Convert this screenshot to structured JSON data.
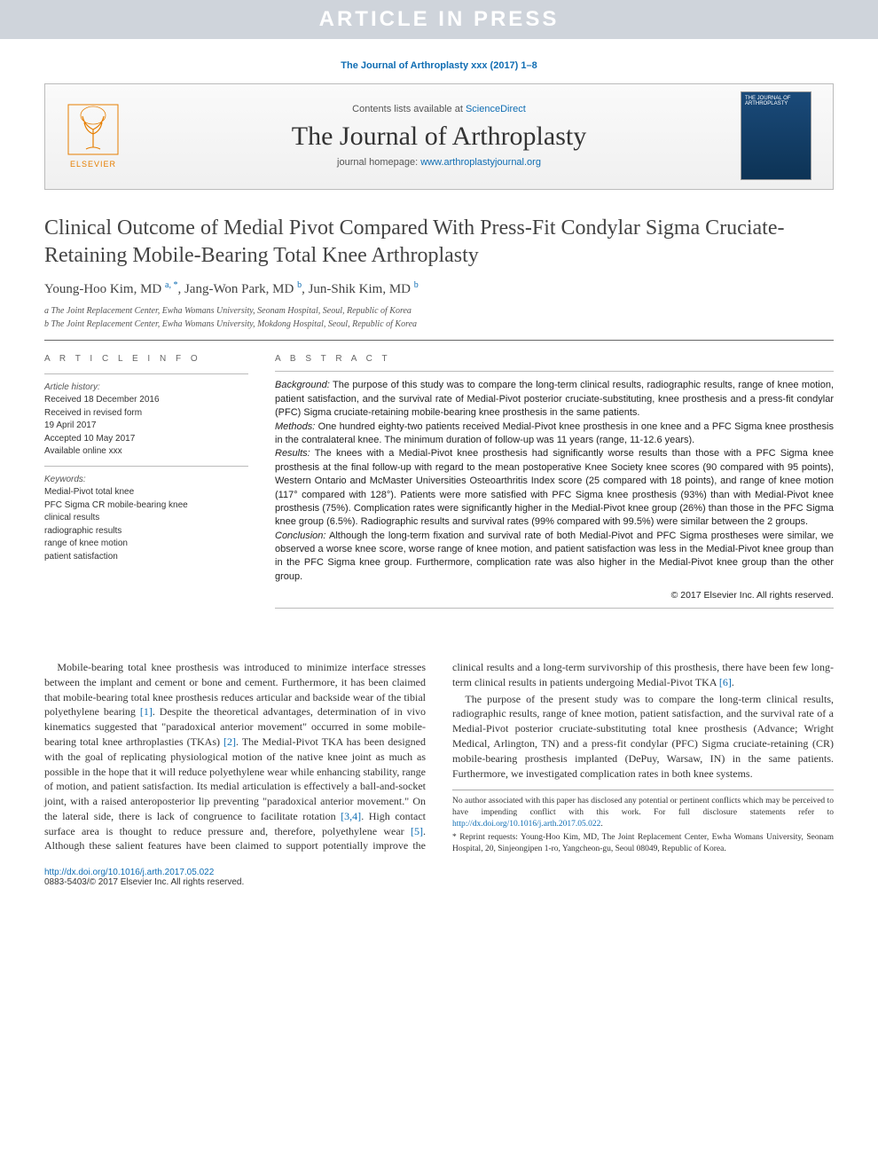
{
  "banner": "ARTICLE IN PRESS",
  "citation": "The Journal of Arthroplasty xxx (2017) 1–8",
  "masthead": {
    "contents_prefix": "Contents lists available at ",
    "contents_link": "ScienceDirect",
    "journal": "The Journal of Arthroplasty",
    "homepage_prefix": "journal homepage: ",
    "homepage": "www.arthroplastyjournal.org",
    "publisher": "ELSEVIER",
    "cover_label": "THE JOURNAL OF ARTHROPLASTY"
  },
  "title": "Clinical Outcome of Medial Pivot Compared With Press-Fit Condylar Sigma Cruciate-Retaining Mobile-Bearing Total Knee Arthroplasty",
  "authors_html": "Young-Hoo Kim, MD <span class='sup'>a, *</span>, Jang-Won Park, MD <span class='sup'>b</span>, Jun-Shik Kim, MD <span class='sup'>b</span>",
  "affiliations": {
    "a": "a The Joint Replacement Center, Ewha Womans University, Seonam Hospital, Seoul, Republic of Korea",
    "b": "b The Joint Replacement Center, Ewha Womans University, Mokdong Hospital, Seoul, Republic of Korea"
  },
  "article_info": {
    "head": "A R T I C L E  I N F O",
    "history_label": "Article history:",
    "history": [
      "Received 18 December 2016",
      "Received in revised form",
      "19 April 2017",
      "Accepted 10 May 2017",
      "Available online xxx"
    ],
    "keywords_label": "Keywords:",
    "keywords": [
      "Medial-Pivot total knee",
      "PFC Sigma CR mobile-bearing knee",
      "clinical results",
      "radiographic results",
      "range of knee motion",
      "patient satisfaction"
    ]
  },
  "abstract": {
    "head": "A B S T R A C T",
    "background_label": "Background:",
    "background": " The purpose of this study was to compare the long-term clinical results, radiographic results, range of knee motion, patient satisfaction, and the survival rate of Medial-Pivot posterior cruciate-substituting, knee prosthesis and a press-fit condylar (PFC) Sigma cruciate-retaining mobile-bearing knee prosthesis in the same patients.",
    "methods_label": "Methods:",
    "methods": " One hundred eighty-two patients received Medial-Pivot knee prosthesis in one knee and a PFC Sigma knee prosthesis in the contralateral knee. The minimum duration of follow-up was 11 years (range, 11-12.6 years).",
    "results_label": "Results:",
    "results": " The knees with a Medial-Pivot knee prosthesis had significantly worse results than those with a PFC Sigma knee prosthesis at the final follow-up with regard to the mean postoperative Knee Society knee scores (90 compared with 95 points), Western Ontario and McMaster Universities Osteoarthritis Index score (25 compared with 18 points), and range of knee motion (117° compared with 128°). Patients were more satisfied with PFC Sigma knee prosthesis (93%) than with Medial-Pivot knee prosthesis (75%). Complication rates were significantly higher in the Medial-Pivot knee group (26%) than those in the PFC Sigma knee group (6.5%). Radiographic results and survival rates (99% compared with 99.5%) were similar between the 2 groups.",
    "conclusion_label": "Conclusion:",
    "conclusion": " Although the long-term fixation and survival rate of both Medial-Pivot and PFC Sigma prostheses were similar, we observed a worse knee score, worse range of knee motion, and patient satisfaction was less in the Medial-Pivot knee group than in the PFC Sigma knee group. Furthermore, complication rate was also higher in the Medial-Pivot knee group than the other group.",
    "copyright": "© 2017 Elsevier Inc. All rights reserved."
  },
  "body": {
    "p1a": "Mobile-bearing total knee prosthesis was introduced to minimize interface stresses between the implant and cement or bone and cement. Furthermore, it has been claimed that mobile-bearing total knee prosthesis reduces articular and backside wear of the tibial polyethylene bearing ",
    "ref1": "[1]",
    "p1b": ". Despite the theoretical advantages, determination of in vivo kinematics suggested that \"paradoxical anterior movement\" occurred in some mobile-bearing total knee arthroplasties (TKAs) ",
    "ref2": "[2]",
    "p1c": ". The Medial-Pivot TKA has been designed with the goal of replicating physiological motion of the native knee joint as much as possible in the hope that it will reduce polyethylene wear",
    "p2a": "while enhancing stability, range of motion, and patient satisfaction. Its medial articulation is effectively a ball-and-socket joint, with a raised anteroposterior lip preventing \"paradoxical anterior movement.\" On the lateral side, there is lack of congruence to facilitate rotation ",
    "ref34": "[3,4]",
    "p2b": ". High contact surface area is thought to reduce pressure and, therefore, polyethylene wear ",
    "ref5": "[5]",
    "p2c": ". Although these salient features have been claimed to support potentially improve the clinical results and a long-term survivorship of this prosthesis, there have been few long-term clinical results in patients undergoing Medial-Pivot TKA ",
    "ref6": "[6]",
    "p2d": ".",
    "p3": "The purpose of the present study was to compare the long-term clinical results, radiographic results, range of knee motion, patient satisfaction, and the survival rate of a Medial-Pivot posterior cruciate-substituting total knee prosthesis (Advance; Wright Medical, Arlington, TN) and a press-fit condylar (PFC) Sigma cruciate-retaining (CR) mobile-bearing prosthesis implanted (DePuy, Warsaw, IN) in the same patients. Furthermore, we investigated complication rates in both knee systems."
  },
  "footnotes": {
    "conflict": "No author associated with this paper has disclosed any potential or pertinent conflicts which may be perceived to have impending conflict with this work. For full disclosure statements refer to ",
    "conflict_link": "http://dx.doi.org/10.1016/j.arth.2017.05.022",
    "reprint": "* Reprint requests: Young-Hoo Kim, MD, The Joint Replacement Center, Ewha Womans University, Seonam Hospital, 20, Sinjeongipen 1-ro, Yangcheon-gu, Seoul 08049, Republic of Korea."
  },
  "doi": {
    "link": "http://dx.doi.org/10.1016/j.arth.2017.05.022",
    "issn": "0883-5403/© 2017 Elsevier Inc. All rights reserved."
  },
  "colors": {
    "link": "#0f6db3",
    "banner_bg": "#cfd4db",
    "orange": "#e67e00"
  }
}
